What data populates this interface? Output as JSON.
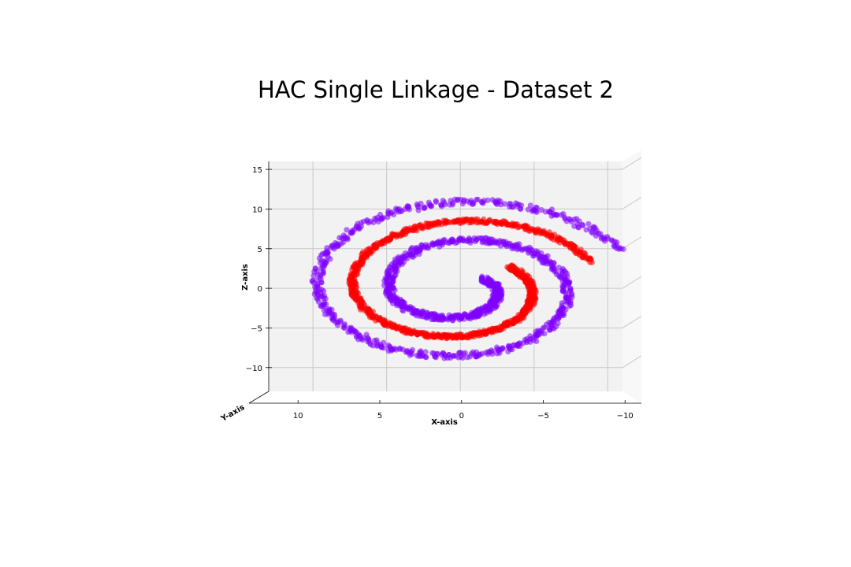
{
  "chart_data": {
    "type": "scatter",
    "projection": "3d",
    "title": "HAC Single Linkage - Dataset 2",
    "xlabel": "X-axis",
    "ylabel": "Y-axis",
    "zlabel": "Z-axis",
    "xlim": [
      13.0,
      -11.0
    ],
    "zlim": [
      -13.0,
      16.0
    ],
    "x_ticks": [
      "10",
      "5",
      "0",
      "−5",
      "−10"
    ],
    "x_tick_values": [
      10,
      5,
      0,
      -5,
      -10
    ],
    "z_ticks": [
      "15",
      "10",
      "5",
      "0",
      "−5",
      "−10"
    ],
    "z_tick_values": [
      15,
      10,
      5,
      0,
      -5,
      -10
    ],
    "grid": true,
    "legend": "none",
    "series": [
      {
        "color": "#8000ff",
        "kind": "spiral-arm",
        "theta_start": 2.5,
        "theta_end": 15.3,
        "radius_scale": 0.77,
        "point_count": 1200,
        "jitter": 0.35
      },
      {
        "color": "#ff0000",
        "kind": "spiral-arm",
        "theta_start": 5.6,
        "theta_end": 12.2,
        "radius_scale": 0.77,
        "phase": 3.14159,
        "point_count": 1000,
        "jitter": 0.25
      }
    ]
  }
}
